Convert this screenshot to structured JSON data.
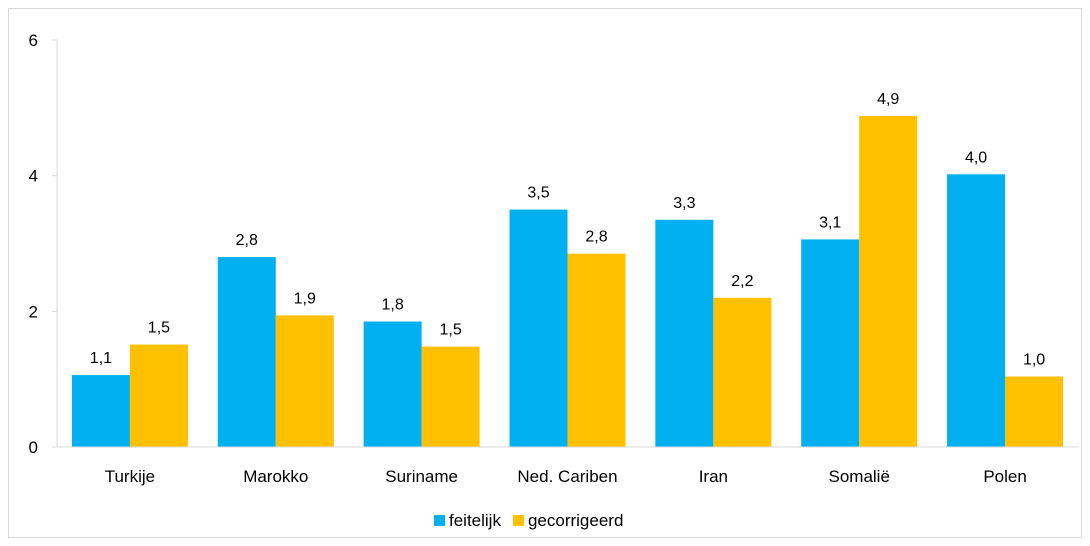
{
  "chart_data": {
    "type": "bar",
    "categories": [
      "Turkije",
      "Marokko",
      "Suriname",
      "Ned. Cariben",
      "Iran",
      "Somalië",
      "Polen"
    ],
    "series": [
      {
        "name": "feitelijk",
        "color": "#00b0f0",
        "values": [
          1.06,
          2.8,
          1.85,
          3.5,
          3.35,
          3.06,
          4.02
        ],
        "labels": [
          "1,1",
          "2,8",
          "1,8",
          "3,5",
          "3,3",
          "3,1",
          "4,0"
        ]
      },
      {
        "name": "gecorrigeerd",
        "color": "#ffc000",
        "values": [
          1.51,
          1.94,
          1.48,
          2.85,
          2.2,
          4.88,
          1.04
        ],
        "labels": [
          "1,5",
          "1,9",
          "1,5",
          "2,8",
          "2,2",
          "4,9",
          "1,0"
        ]
      }
    ],
    "ylim": [
      0,
      6
    ],
    "yticks": [
      0,
      2,
      4,
      6
    ],
    "ytick_labels": [
      "0",
      "2",
      "4",
      "6"
    ],
    "grid": false,
    "legend": "bottom"
  }
}
